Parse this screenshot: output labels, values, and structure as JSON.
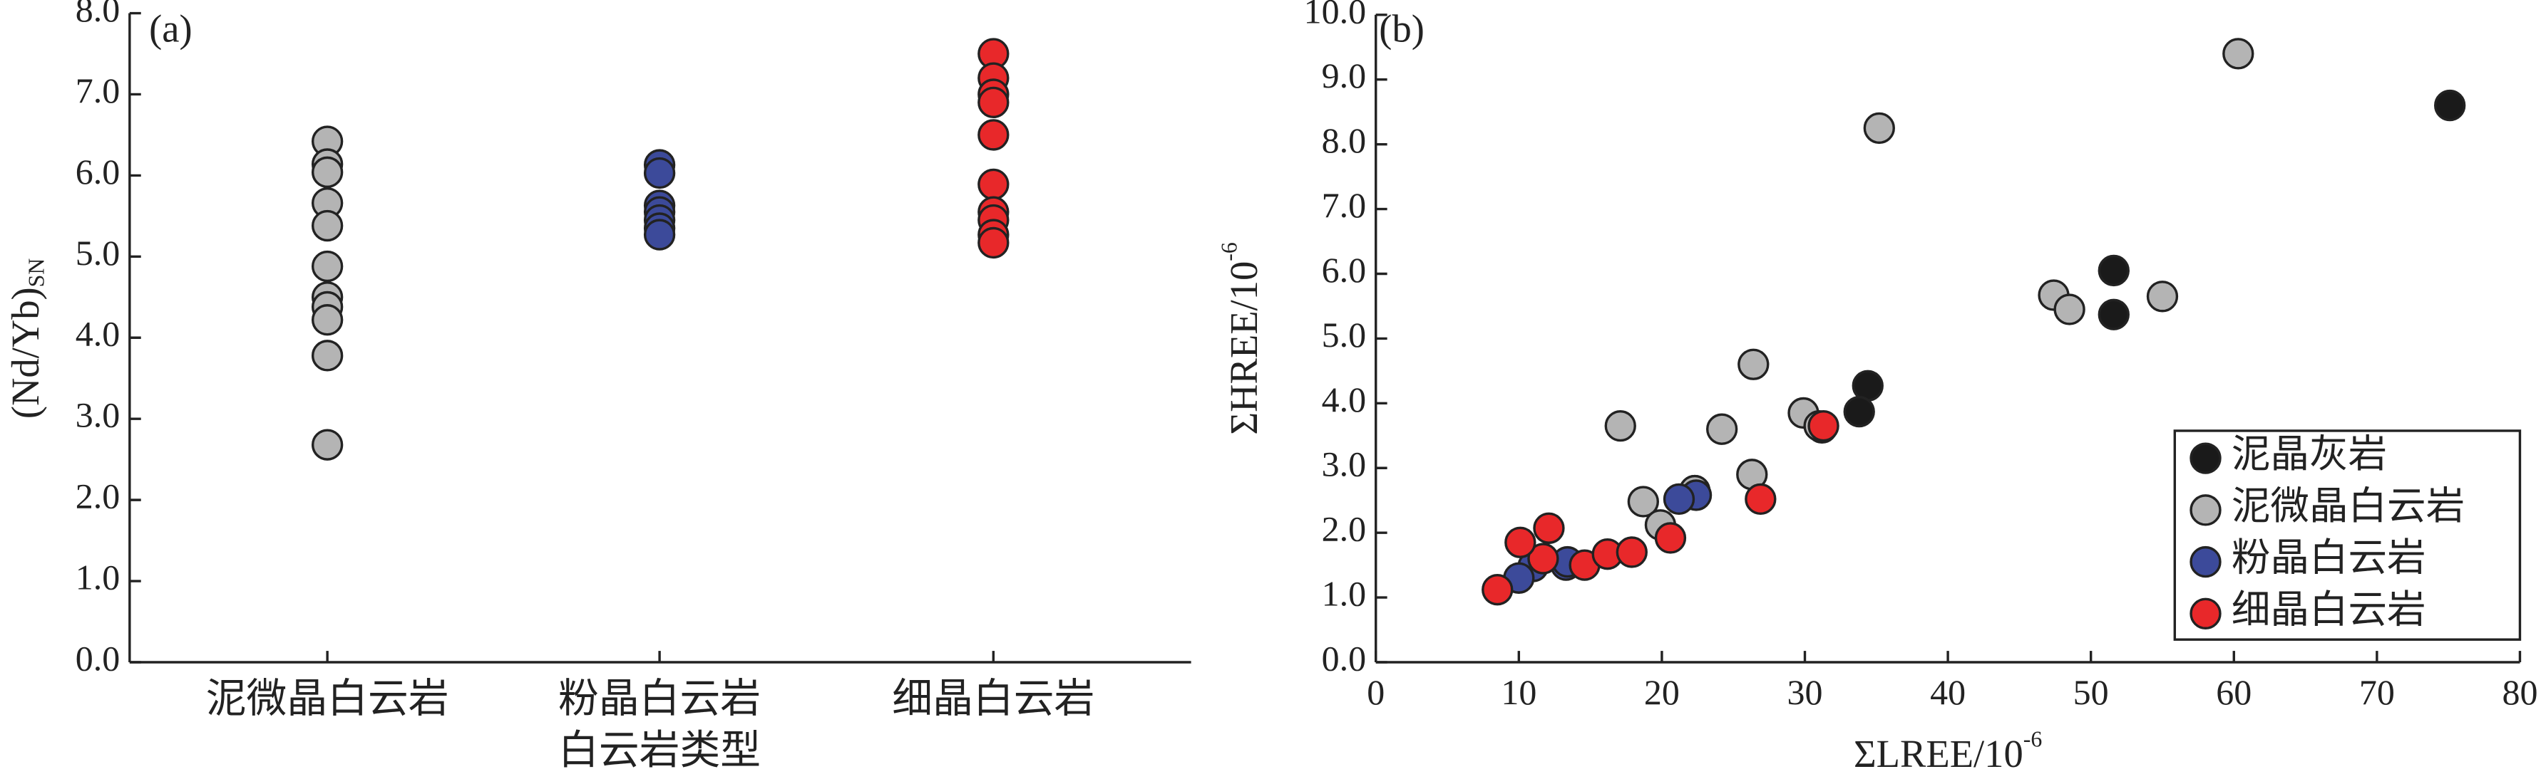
{
  "chart_data": [
    {
      "type": "strip",
      "panel": "(a)",
      "ylabel": "(Nd/Yb)",
      "ylabel_sub": "SN",
      "xlabel": "白云岩类型",
      "categories": [
        "泥微晶白云岩",
        "粉晶白云岩",
        "细晶白云岩"
      ],
      "colors": [
        "#b4b4b4",
        "#3c4a9a",
        "#e8282a"
      ],
      "values": [
        [
          6.42,
          6.14,
          6.04,
          5.66,
          5.38,
          4.88,
          4.5,
          4.38,
          4.22,
          3.78,
          2.68
        ],
        [
          6.13,
          6.03,
          5.63,
          5.55,
          5.45,
          5.35,
          5.27
        ],
        [
          7.5,
          7.2,
          7.0,
          6.9,
          6.5,
          5.89,
          5.55,
          5.45,
          5.27,
          5.17
        ]
      ],
      "ylim": [
        0,
        8
      ],
      "yticks": [
        {
          "value": 0,
          "label": "0.0"
        },
        {
          "value": 1,
          "label": "1.0"
        },
        {
          "value": 2,
          "label": "2.0"
        },
        {
          "value": 3,
          "label": "3.0"
        },
        {
          "value": 4,
          "label": "4.0"
        },
        {
          "value": 5,
          "label": "5.0"
        },
        {
          "value": 6,
          "label": "6.0"
        },
        {
          "value": 7,
          "label": "7.0"
        },
        {
          "value": 8,
          "label": "8.0"
        }
      ]
    },
    {
      "type": "scatter",
      "panel": "(b)",
      "xlabel": "ΣLREE/10",
      "xlabel_sup": "-6",
      "ylabel": "ΣHREE/10",
      "ylabel_sup": "-6",
      "series": [
        {
          "name": "泥晶灰岩",
          "color": "#1a1a1a",
          "x": [
            75.1,
            51.6,
            51.6,
            34.4,
            33.8,
            31.2,
            22.3
          ],
          "y": [
            8.6,
            6.05,
            5.37,
            4.27,
            3.87,
            3.62,
            2.65
          ]
        },
        {
          "name": "泥微晶白云岩",
          "color": "#b4b4b4",
          "x": [
            60.3,
            35.2,
            47.4,
            48.5,
            55.0,
            26.4,
            29.9,
            17.1,
            24.2,
            26.3,
            31.0,
            18.7,
            19.9,
            22.3
          ],
          "y": [
            9.4,
            8.25,
            5.67,
            5.45,
            5.65,
            4.6,
            3.85,
            3.65,
            3.6,
            2.9,
            3.65,
            2.48,
            2.12,
            2.65
          ]
        },
        {
          "name": "粉晶白云岩",
          "color": "#3c4a9a",
          "x": [
            22.4,
            21.2,
            13.3,
            11.0,
            10.0,
            13.4
          ],
          "y": [
            2.58,
            2.52,
            1.5,
            1.48,
            1.3,
            1.55
          ]
        },
        {
          "name": "细晶白云岩",
          "color": "#e8282a",
          "x": [
            8.5,
            11.7,
            10.1,
            12.1,
            14.6,
            16.2,
            17.9,
            20.6,
            26.9,
            31.3
          ],
          "y": [
            1.12,
            1.6,
            1.85,
            2.07,
            1.5,
            1.67,
            1.7,
            1.92,
            2.52,
            3.65
          ]
        }
      ],
      "xlim": [
        0,
        80
      ],
      "xticks": [
        0,
        10,
        20,
        30,
        40,
        50,
        60,
        70,
        80
      ],
      "ylim": [
        0,
        10
      ],
      "yticks": [
        {
          "value": 0,
          "label": "0.0"
        },
        {
          "value": 1,
          "label": "1.0"
        },
        {
          "value": 2,
          "label": "2.0"
        },
        {
          "value": 3,
          "label": "3.0"
        },
        {
          "value": 4,
          "label": "4.0"
        },
        {
          "value": 5,
          "label": "5.0"
        },
        {
          "value": 6,
          "label": "6.0"
        },
        {
          "value": 7,
          "label": "7.0"
        },
        {
          "value": 8,
          "label": "8.0"
        },
        {
          "value": 9,
          "label": "9.0"
        },
        {
          "value": 10,
          "label": "10.0"
        }
      ],
      "legend": "lower right"
    }
  ]
}
